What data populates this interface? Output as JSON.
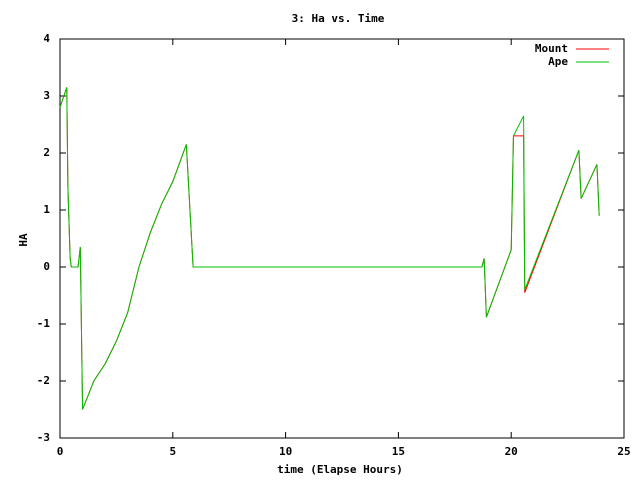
{
  "chart_data": {
    "type": "line",
    "title": "3: Ha vs. Time",
    "x_label": "time (Elapse Hours)",
    "y_label": "HA",
    "x": [
      0,
      0.3,
      0.35,
      0.45,
      0.5,
      0.8,
      0.9,
      1.0,
      1.5,
      2.0,
      2.5,
      3.0,
      3.5,
      4.0,
      4.5,
      5.0,
      5.6,
      5.9,
      18.7,
      18.8,
      18.9,
      20.0,
      20.1,
      20.55,
      20.6,
      23.0,
      23.1,
      23.8,
      23.9
    ],
    "series": [
      {
        "name": "Mount",
        "color": "#ff0000",
        "values": [
          2.8,
          3.15,
          1.4,
          0.15,
          0,
          0,
          0.35,
          -2.5,
          -2.0,
          -1.7,
          -1.3,
          -0.8,
          0,
          0.6,
          1.1,
          1.5,
          2.15,
          0,
          0,
          0.15,
          -0.88,
          0.3,
          2.3,
          2.3,
          -0.45,
          2.05,
          1.2,
          1.8,
          0.9
        ]
      },
      {
        "name": "Ape",
        "color": "#00c000",
        "values": [
          2.8,
          3.15,
          1.4,
          0.15,
          0,
          0,
          0.35,
          -2.5,
          -2.0,
          -1.7,
          -1.3,
          -0.8,
          0,
          0.6,
          1.1,
          1.5,
          2.15,
          0,
          0,
          0.15,
          -0.88,
          0.3,
          2.3,
          2.65,
          -0.4,
          2.05,
          1.2,
          1.8,
          0.9
        ]
      }
    ],
    "xlim": [
      0,
      25
    ],
    "xticks": [
      0,
      5,
      10,
      15,
      20,
      25
    ],
    "ylim": [
      -3,
      4
    ],
    "yticks": [
      -3,
      -2,
      -1,
      0,
      1,
      2,
      3,
      4
    ],
    "legend": "top-right"
  }
}
